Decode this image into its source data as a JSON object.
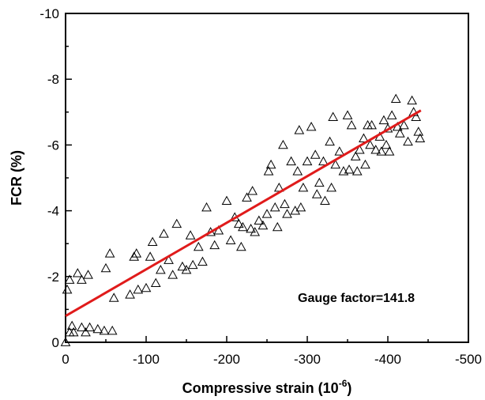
{
  "chart_data": {
    "type": "scatter",
    "xlabel": "Compressive strain (10",
    "xlabel_exp": "-6",
    "xlabel_close": ")",
    "ylabel": "FCR (%)",
    "xlim": [
      0,
      -500
    ],
    "ylim": [
      0,
      -10
    ],
    "x_ticks": [
      "0",
      "-100",
      "-200",
      "-300",
      "-400",
      "-500"
    ],
    "y_ticks": [
      "0",
      "-2",
      "-4",
      "-6",
      "-8",
      "-10"
    ],
    "annotation": "Gauge factor=141.8",
    "fit_line": {
      "x": [
        0,
        -441
      ],
      "y": [
        -0.8,
        -7.05
      ],
      "color": "#e01b1b"
    },
    "series": [
      {
        "marker": "open-triangle",
        "points": [
          [
            0,
            0
          ],
          [
            -2,
            -1.6
          ],
          [
            -5,
            -0.3
          ],
          [
            -8,
            -0.5
          ],
          [
            -10,
            -0.3
          ],
          [
            -20,
            -0.45
          ],
          [
            -25,
            -0.3
          ],
          [
            -30,
            -0.45
          ],
          [
            -40,
            -0.4
          ],
          [
            -48,
            -0.35
          ],
          [
            -58,
            -0.35
          ],
          [
            -5,
            -1.9
          ],
          [
            -15,
            -2.1
          ],
          [
            -20,
            -1.9
          ],
          [
            -28,
            -2.05
          ],
          [
            -50,
            -2.25
          ],
          [
            -55,
            -2.7
          ],
          [
            -60,
            -1.35
          ],
          [
            -80,
            -1.45
          ],
          [
            -90,
            -1.6
          ],
          [
            -85,
            -2.6
          ],
          [
            -88,
            -2.7
          ],
          [
            -100,
            -1.65
          ],
          [
            -105,
            -2.6
          ],
          [
            -108,
            -3.05
          ],
          [
            -112,
            -1.8
          ],
          [
            -118,
            -2.2
          ],
          [
            -122,
            -3.3
          ],
          [
            -128,
            -2.5
          ],
          [
            -133,
            -2.05
          ],
          [
            -138,
            -3.6
          ],
          [
            -145,
            -2.3
          ],
          [
            -150,
            -2.2
          ],
          [
            -155,
            -3.25
          ],
          [
            -158,
            -2.35
          ],
          [
            -165,
            -2.9
          ],
          [
            -170,
            -2.45
          ],
          [
            -175,
            -4.1
          ],
          [
            -180,
            -3.35
          ],
          [
            -185,
            -2.95
          ],
          [
            -190,
            -3.4
          ],
          [
            -200,
            -4.3
          ],
          [
            -205,
            -3.1
          ],
          [
            -210,
            -3.8
          ],
          [
            -215,
            -3.6
          ],
          [
            -218,
            -2.9
          ],
          [
            -220,
            -3.5
          ],
          [
            -225,
            -4.4
          ],
          [
            -230,
            -3.45
          ],
          [
            -232,
            -4.6
          ],
          [
            -235,
            -3.35
          ],
          [
            -240,
            -3.7
          ],
          [
            -245,
            -3.55
          ],
          [
            -250,
            -3.9
          ],
          [
            -252,
            -5.2
          ],
          [
            -255,
            -5.4
          ],
          [
            -260,
            -4.1
          ],
          [
            -263,
            -3.5
          ],
          [
            -265,
            -4.7
          ],
          [
            -270,
            -6.0
          ],
          [
            -272,
            -4.2
          ],
          [
            -275,
            -3.9
          ],
          [
            -280,
            -5.5
          ],
          [
            -285,
            -4.0
          ],
          [
            -288,
            -5.2
          ],
          [
            -290,
            -6.45
          ],
          [
            -292,
            -4.1
          ],
          [
            -295,
            -4.7
          ],
          [
            -300,
            -5.5
          ],
          [
            -305,
            -6.55
          ],
          [
            -310,
            -5.7
          ],
          [
            -312,
            -4.5
          ],
          [
            -315,
            -4.85
          ],
          [
            -320,
            -5.5
          ],
          [
            -322,
            -4.3
          ],
          [
            -328,
            -6.1
          ],
          [
            -330,
            -4.7
          ],
          [
            -332,
            -6.85
          ],
          [
            -335,
            -5.4
          ],
          [
            -340,
            -5.8
          ],
          [
            -345,
            -5.2
          ],
          [
            -350,
            -6.9
          ],
          [
            -352,
            -5.25
          ],
          [
            -355,
            -6.6
          ],
          [
            -360,
            -5.65
          ],
          [
            -362,
            -5.2
          ],
          [
            -365,
            -5.85
          ],
          [
            -370,
            -6.2
          ],
          [
            -372,
            -5.4
          ],
          [
            -375,
            -6.6
          ],
          [
            -378,
            -6.0
          ],
          [
            -380,
            -6.6
          ],
          [
            -385,
            -5.85
          ],
          [
            -390,
            -6.25
          ],
          [
            -392,
            -5.8
          ],
          [
            -395,
            -6.75
          ],
          [
            -398,
            -6.0
          ],
          [
            -400,
            -6.5
          ],
          [
            -402,
            -5.8
          ],
          [
            -405,
            -6.9
          ],
          [
            -410,
            -7.4
          ],
          [
            -412,
            -6.55
          ],
          [
            -415,
            -6.35
          ],
          [
            -420,
            -6.6
          ],
          [
            -425,
            -6.1
          ],
          [
            -430,
            -7.35
          ],
          [
            -432,
            -7.0
          ],
          [
            -435,
            -6.85
          ],
          [
            -438,
            -6.4
          ],
          [
            -440,
            -6.2
          ]
        ]
      }
    ]
  }
}
